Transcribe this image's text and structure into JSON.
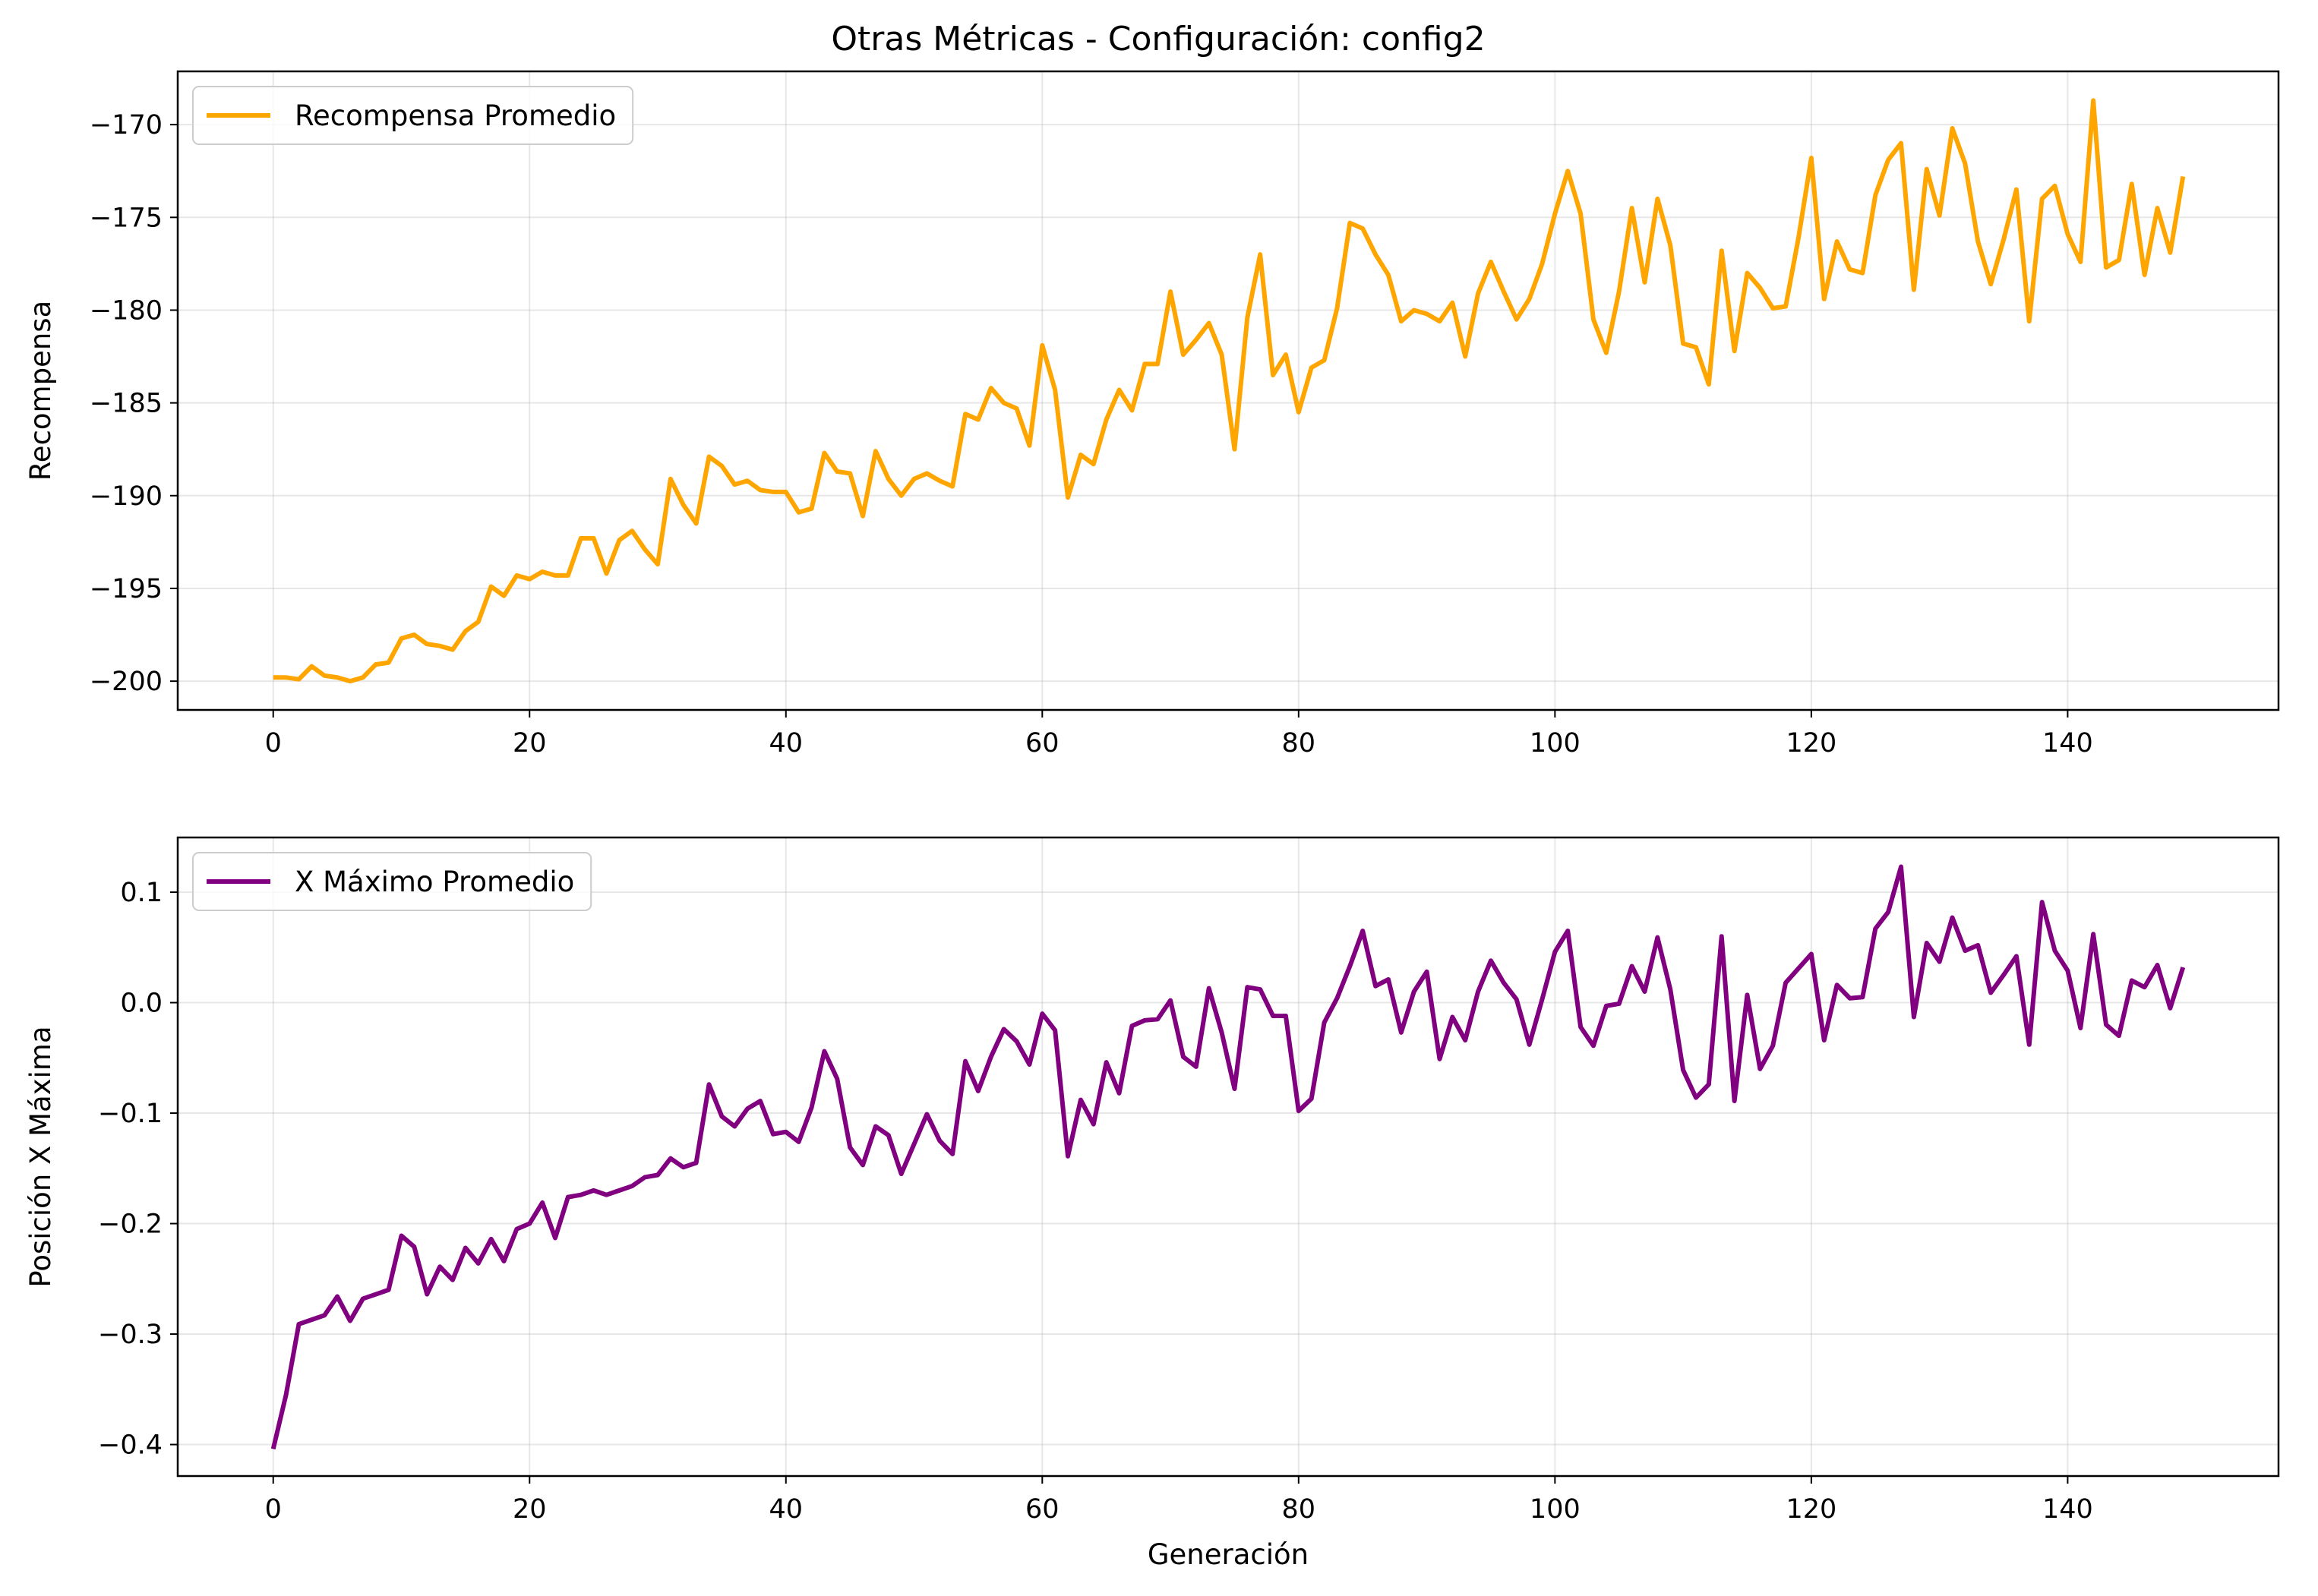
{
  "figure": {
    "title": "Otras Métricas - Configuración: config2",
    "background": "#ffffff"
  },
  "chart_data": [
    {
      "type": "line",
      "title": "Otras Métricas - Configuración: config2",
      "xlabel": "",
      "ylabel": "Recompensa",
      "xlim": [
        -7.45,
        156.45
      ],
      "ylim": [
        -201.55,
        -167.13
      ],
      "xticks": [
        0,
        20,
        40,
        60,
        80,
        100,
        120,
        140
      ],
      "yticks": [
        -200,
        -195,
        -190,
        -185,
        -180,
        -175,
        -170
      ],
      "ytick_labels": [
        "−200",
        "−195",
        "−190",
        "−185",
        "−180",
        "−175",
        "−170"
      ],
      "xtick_labels": [
        "0",
        "20",
        "40",
        "60",
        "80",
        "100",
        "120",
        "140"
      ],
      "grid": true,
      "legend": "upper left",
      "series": [
        {
          "name": "Recompensa Promedio",
          "color": "#ffa500",
          "x_start": 0,
          "x_step": 1,
          "values": [
            -199.8,
            -199.8,
            -199.9,
            -199.2,
            -199.7,
            -199.8,
            -200.0,
            -199.8,
            -199.1,
            -199.0,
            -197.7,
            -197.5,
            -198.0,
            -198.1,
            -198.3,
            -197.3,
            -196.8,
            -194.9,
            -195.4,
            -194.3,
            -194.5,
            -194.1,
            -194.3,
            -194.3,
            -192.3,
            -192.3,
            -194.2,
            -192.4,
            -191.9,
            -192.9,
            -193.7,
            -189.1,
            -190.5,
            -191.5,
            -187.9,
            -188.4,
            -189.4,
            -189.2,
            -189.7,
            -189.8,
            -189.8,
            -190.9,
            -190.7,
            -187.7,
            -188.7,
            -188.8,
            -191.1,
            -187.6,
            -189.1,
            -190.0,
            -189.1,
            -188.8,
            -189.2,
            -189.5,
            -185.6,
            -185.9,
            -184.2,
            -185.0,
            -185.3,
            -187.3,
            -181.9,
            -184.3,
            -190.1,
            -187.8,
            -188.3,
            -185.9,
            -184.3,
            -185.4,
            -182.9,
            -182.9,
            -179.0,
            -182.4,
            -181.6,
            -180.7,
            -182.4,
            -187.5,
            -180.4,
            -177.0,
            -183.5,
            -182.4,
            -185.5,
            -183.1,
            -182.7,
            -179.9,
            -175.3,
            -175.6,
            -177.0,
            -178.1,
            -180.6,
            -180.0,
            -180.2,
            -180.6,
            -179.6,
            -182.5,
            -179.1,
            -177.4,
            -179.0,
            -180.5,
            -179.4,
            -177.5,
            -174.8,
            -172.5,
            -174.8,
            -180.5,
            -182.3,
            -179.0,
            -174.5,
            -178.5,
            -174.0,
            -176.5,
            -181.8,
            -182.0,
            -184.0,
            -176.8,
            -182.2,
            -178.0,
            -178.8,
            -179.9,
            -179.8,
            -176.1,
            -171.8,
            -179.4,
            -176.3,
            -177.8,
            -178.0,
            -173.8,
            -171.9,
            -171.0,
            -178.9,
            -172.4,
            -174.9,
            -170.2,
            -172.1,
            -176.3,
            -178.6,
            -176.2,
            -173.5,
            -180.6,
            -174.0,
            -173.3,
            -175.9,
            -177.4,
            -168.7,
            -177.7,
            -177.3,
            -173.2,
            -178.1,
            -174.5,
            -176.9,
            -172.8
          ]
        }
      ]
    },
    {
      "type": "line",
      "title": "",
      "xlabel": "Generación",
      "ylabel": "Posición X Máxima",
      "xlim": [
        -7.45,
        156.45
      ],
      "ylim": [
        -0.4285,
        0.1495
      ],
      "xticks": [
        0,
        20,
        40,
        60,
        80,
        100,
        120,
        140
      ],
      "yticks": [
        -0.4,
        -0.3,
        -0.2,
        -0.1,
        0.0,
        0.1
      ],
      "ytick_labels": [
        "−0.4",
        "−0.3",
        "−0.2",
        "−0.1",
        "0.0",
        "0.1"
      ],
      "xtick_labels": [
        "0",
        "20",
        "40",
        "60",
        "80",
        "100",
        "120",
        "140"
      ],
      "grid": true,
      "legend": "upper left",
      "series": [
        {
          "name": "X Máximo Promedio",
          "color": "#800080",
          "x_start": 0,
          "x_step": 1,
          "values": [
            -0.404,
            -0.355,
            -0.291,
            -0.287,
            -0.283,
            -0.266,
            -0.288,
            -0.268,
            -0.264,
            -0.26,
            -0.211,
            -0.221,
            -0.264,
            -0.239,
            -0.251,
            -0.222,
            -0.236,
            -0.214,
            -0.234,
            -0.205,
            -0.2,
            -0.181,
            -0.213,
            -0.176,
            -0.174,
            -0.17,
            -0.174,
            -0.17,
            -0.166,
            -0.158,
            -0.156,
            -0.141,
            -0.149,
            -0.145,
            -0.074,
            -0.103,
            -0.112,
            -0.096,
            -0.089,
            -0.119,
            -0.117,
            -0.126,
            -0.095,
            -0.044,
            -0.069,
            -0.131,
            -0.147,
            -0.112,
            -0.12,
            -0.155,
            -0.128,
            -0.101,
            -0.125,
            -0.137,
            -0.053,
            -0.08,
            -0.049,
            -0.024,
            -0.035,
            -0.056,
            -0.01,
            -0.025,
            -0.139,
            -0.088,
            -0.11,
            -0.054,
            -0.082,
            -0.021,
            -0.016,
            -0.015,
            0.002,
            -0.049,
            -0.058,
            0.013,
            -0.027,
            -0.078,
            0.014,
            0.012,
            -0.012,
            -0.012,
            -0.098,
            -0.087,
            -0.018,
            0.004,
            0.033,
            0.065,
            0.015,
            0.021,
            -0.027,
            0.01,
            0.028,
            -0.051,
            -0.013,
            -0.034,
            0.01,
            0.038,
            0.018,
            0.003,
            -0.038,
            0.003,
            0.046,
            0.065,
            -0.022,
            -0.039,
            -0.003,
            -0.001,
            0.033,
            0.01,
            0.059,
            0.012,
            -0.061,
            -0.086,
            -0.074,
            0.06,
            -0.089,
            0.007,
            -0.06,
            -0.039,
            0.018,
            0.031,
            0.044,
            -0.034,
            0.016,
            0.004,
            0.005,
            0.067,
            0.082,
            0.123,
            -0.013,
            0.054,
            0.037,
            0.077,
            0.047,
            0.052,
            0.009,
            0.025,
            0.042,
            -0.038,
            0.091,
            0.047,
            0.029,
            -0.023,
            0.062,
            -0.02,
            -0.03,
            0.02,
            0.014,
            0.034,
            -0.005,
            0.032
          ]
        }
      ]
    }
  ]
}
